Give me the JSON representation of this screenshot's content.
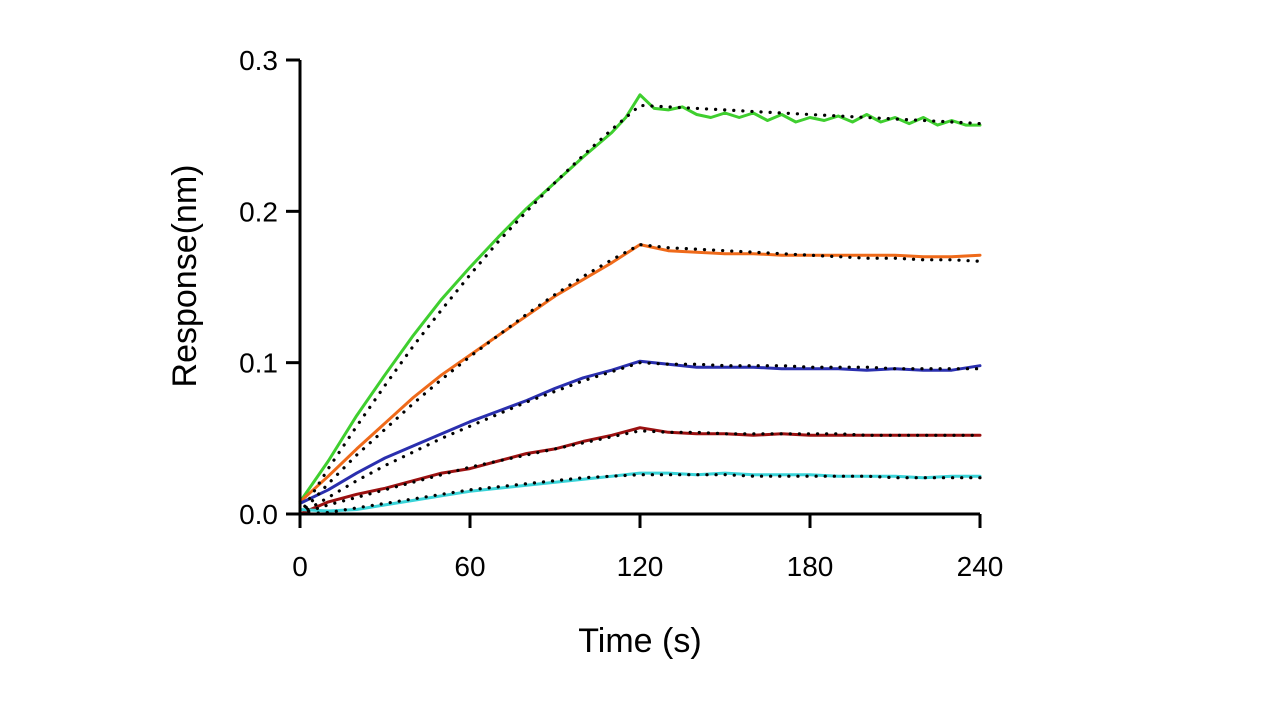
{
  "chart_data": {
    "type": "line",
    "title": "",
    "xlabel": "Time (s)",
    "ylabel": "Response(nm)",
    "xlim": [
      0,
      240
    ],
    "ylim": [
      0,
      0.3
    ],
    "xticks": [
      0,
      60,
      120,
      180,
      240
    ],
    "xtick_labels": [
      "0",
      "60",
      "120",
      "180",
      "240"
    ],
    "yticks": [
      0,
      0.1,
      0.2,
      0.3
    ],
    "ytick_labels": [
      "0.0",
      "0.1",
      "0.2",
      "0.3"
    ],
    "grid": false,
    "legend": "none",
    "series": [
      {
        "color": "#3fcf2f",
        "measured": [
          [
            0,
            0.008
          ],
          [
            10,
            0.035
          ],
          [
            20,
            0.065
          ],
          [
            30,
            0.092
          ],
          [
            40,
            0.118
          ],
          [
            50,
            0.142
          ],
          [
            60,
            0.163
          ],
          [
            70,
            0.183
          ],
          [
            80,
            0.202
          ],
          [
            90,
            0.219
          ],
          [
            100,
            0.236
          ],
          [
            110,
            0.252
          ],
          [
            115,
            0.262
          ],
          [
            120,
            0.277
          ],
          [
            125,
            0.268
          ],
          [
            130,
            0.267
          ],
          [
            135,
            0.269
          ],
          [
            140,
            0.264
          ],
          [
            145,
            0.262
          ],
          [
            150,
            0.265
          ],
          [
            155,
            0.262
          ],
          [
            160,
            0.265
          ],
          [
            165,
            0.26
          ],
          [
            170,
            0.264
          ],
          [
            175,
            0.259
          ],
          [
            180,
            0.262
          ],
          [
            185,
            0.26
          ],
          [
            190,
            0.263
          ],
          [
            195,
            0.259
          ],
          [
            200,
            0.264
          ],
          [
            205,
            0.259
          ],
          [
            210,
            0.262
          ],
          [
            215,
            0.258
          ],
          [
            220,
            0.262
          ],
          [
            225,
            0.257
          ],
          [
            230,
            0.26
          ],
          [
            235,
            0.257
          ],
          [
            240,
            0.257
          ]
        ],
        "fit": [
          [
            0,
            0.0
          ],
          [
            10,
            0.03
          ],
          [
            20,
            0.058
          ],
          [
            30,
            0.085
          ],
          [
            40,
            0.111
          ],
          [
            50,
            0.135
          ],
          [
            60,
            0.158
          ],
          [
            70,
            0.18
          ],
          [
            80,
            0.2
          ],
          [
            90,
            0.219
          ],
          [
            100,
            0.237
          ],
          [
            110,
            0.254
          ],
          [
            120,
            0.27
          ],
          [
            130,
            0.269
          ],
          [
            140,
            0.268
          ],
          [
            150,
            0.267
          ],
          [
            160,
            0.266
          ],
          [
            170,
            0.265
          ],
          [
            180,
            0.264
          ],
          [
            190,
            0.263
          ],
          [
            200,
            0.262
          ],
          [
            210,
            0.261
          ],
          [
            220,
            0.26
          ],
          [
            230,
            0.259
          ],
          [
            240,
            0.258
          ]
        ]
      },
      {
        "color": "#ef6a1a",
        "measured": [
          [
            0,
            0.008
          ],
          [
            10,
            0.025
          ],
          [
            20,
            0.043
          ],
          [
            30,
            0.06
          ],
          [
            40,
            0.077
          ],
          [
            50,
            0.092
          ],
          [
            60,
            0.105
          ],
          [
            70,
            0.118
          ],
          [
            80,
            0.131
          ],
          [
            90,
            0.144
          ],
          [
            100,
            0.155
          ],
          [
            110,
            0.166
          ],
          [
            120,
            0.178
          ],
          [
            130,
            0.174
          ],
          [
            140,
            0.173
          ],
          [
            150,
            0.172
          ],
          [
            160,
            0.172
          ],
          [
            170,
            0.171
          ],
          [
            180,
            0.171
          ],
          [
            190,
            0.171
          ],
          [
            200,
            0.171
          ],
          [
            210,
            0.171
          ],
          [
            220,
            0.17
          ],
          [
            230,
            0.17
          ],
          [
            240,
            0.171
          ]
        ],
        "fit": [
          [
            0,
            0.0
          ],
          [
            10,
            0.02
          ],
          [
            20,
            0.039
          ],
          [
            30,
            0.056
          ],
          [
            40,
            0.073
          ],
          [
            50,
            0.089
          ],
          [
            60,
            0.104
          ],
          [
            70,
            0.118
          ],
          [
            80,
            0.132
          ],
          [
            90,
            0.145
          ],
          [
            100,
            0.157
          ],
          [
            110,
            0.168
          ],
          [
            120,
            0.178
          ],
          [
            130,
            0.176
          ],
          [
            140,
            0.175
          ],
          [
            150,
            0.174
          ],
          [
            160,
            0.173
          ],
          [
            170,
            0.172
          ],
          [
            180,
            0.171
          ],
          [
            190,
            0.17
          ],
          [
            200,
            0.169
          ],
          [
            210,
            0.169
          ],
          [
            220,
            0.168
          ],
          [
            230,
            0.168
          ],
          [
            240,
            0.167
          ]
        ]
      },
      {
        "color": "#2a2fae",
        "measured": [
          [
            0,
            0.007
          ],
          [
            10,
            0.016
          ],
          [
            20,
            0.027
          ],
          [
            30,
            0.037
          ],
          [
            40,
            0.045
          ],
          [
            50,
            0.053
          ],
          [
            60,
            0.061
          ],
          [
            70,
            0.068
          ],
          [
            80,
            0.075
          ],
          [
            90,
            0.083
          ],
          [
            100,
            0.09
          ],
          [
            110,
            0.095
          ],
          [
            120,
            0.101
          ],
          [
            130,
            0.099
          ],
          [
            140,
            0.097
          ],
          [
            150,
            0.097
          ],
          [
            160,
            0.097
          ],
          [
            170,
            0.096
          ],
          [
            180,
            0.096
          ],
          [
            190,
            0.096
          ],
          [
            200,
            0.095
          ],
          [
            210,
            0.096
          ],
          [
            220,
            0.095
          ],
          [
            230,
            0.095
          ],
          [
            240,
            0.098
          ]
        ],
        "fit": [
          [
            0,
            0.0
          ],
          [
            10,
            0.011
          ],
          [
            20,
            0.022
          ],
          [
            30,
            0.032
          ],
          [
            40,
            0.041
          ],
          [
            50,
            0.05
          ],
          [
            60,
            0.058
          ],
          [
            70,
            0.066
          ],
          [
            80,
            0.074
          ],
          [
            90,
            0.081
          ],
          [
            100,
            0.088
          ],
          [
            110,
            0.094
          ],
          [
            120,
            0.1
          ],
          [
            130,
            0.099
          ],
          [
            140,
            0.099
          ],
          [
            150,
            0.098
          ],
          [
            160,
            0.098
          ],
          [
            170,
            0.098
          ],
          [
            180,
            0.097
          ],
          [
            190,
            0.097
          ],
          [
            200,
            0.097
          ],
          [
            210,
            0.096
          ],
          [
            220,
            0.096
          ],
          [
            230,
            0.096
          ],
          [
            240,
            0.096
          ]
        ]
      },
      {
        "color": "#9b1111",
        "measured": [
          [
            0,
            0.0
          ],
          [
            10,
            0.008
          ],
          [
            20,
            0.013
          ],
          [
            30,
            0.017
          ],
          [
            40,
            0.022
          ],
          [
            50,
            0.027
          ],
          [
            60,
            0.03
          ],
          [
            70,
            0.035
          ],
          [
            80,
            0.04
          ],
          [
            90,
            0.043
          ],
          [
            100,
            0.048
          ],
          [
            110,
            0.052
          ],
          [
            120,
            0.057
          ],
          [
            130,
            0.054
          ],
          [
            140,
            0.053
          ],
          [
            150,
            0.053
          ],
          [
            160,
            0.052
          ],
          [
            170,
            0.053
          ],
          [
            180,
            0.052
          ],
          [
            190,
            0.052
          ],
          [
            200,
            0.052
          ],
          [
            210,
            0.052
          ],
          [
            220,
            0.052
          ],
          [
            230,
            0.052
          ],
          [
            240,
            0.052
          ]
        ],
        "fit": [
          [
            0,
            0.0
          ],
          [
            10,
            0.006
          ],
          [
            20,
            0.011
          ],
          [
            30,
            0.016
          ],
          [
            40,
            0.021
          ],
          [
            50,
            0.026
          ],
          [
            60,
            0.031
          ],
          [
            70,
            0.035
          ],
          [
            80,
            0.039
          ],
          [
            90,
            0.043
          ],
          [
            100,
            0.047
          ],
          [
            110,
            0.051
          ],
          [
            120,
            0.055
          ],
          [
            130,
            0.054
          ],
          [
            140,
            0.054
          ],
          [
            150,
            0.053
          ],
          [
            160,
            0.053
          ],
          [
            170,
            0.053
          ],
          [
            180,
            0.053
          ],
          [
            190,
            0.053
          ],
          [
            200,
            0.052
          ],
          [
            210,
            0.052
          ],
          [
            220,
            0.052
          ],
          [
            230,
            0.052
          ],
          [
            240,
            0.052
          ]
        ]
      },
      {
        "color": "#3ad3d8",
        "measured": [
          [
            0,
            0.003
          ],
          [
            10,
            0.002
          ],
          [
            20,
            0.003
          ],
          [
            30,
            0.006
          ],
          [
            40,
            0.009
          ],
          [
            50,
            0.012
          ],
          [
            60,
            0.015
          ],
          [
            70,
            0.017
          ],
          [
            80,
            0.019
          ],
          [
            90,
            0.021
          ],
          [
            100,
            0.023
          ],
          [
            110,
            0.025
          ],
          [
            120,
            0.027
          ],
          [
            130,
            0.027
          ],
          [
            140,
            0.026
          ],
          [
            150,
            0.027
          ],
          [
            160,
            0.026
          ],
          [
            170,
            0.026
          ],
          [
            180,
            0.026
          ],
          [
            190,
            0.025
          ],
          [
            200,
            0.025
          ],
          [
            210,
            0.025
          ],
          [
            220,
            0.024
          ],
          [
            230,
            0.025
          ],
          [
            240,
            0.025
          ]
        ],
        "fit": [
          [
            0,
            0.0
          ],
          [
            10,
            0.001
          ],
          [
            20,
            0.004
          ],
          [
            30,
            0.007
          ],
          [
            40,
            0.01
          ],
          [
            50,
            0.013
          ],
          [
            60,
            0.016
          ],
          [
            70,
            0.018
          ],
          [
            80,
            0.02
          ],
          [
            90,
            0.022
          ],
          [
            100,
            0.024
          ],
          [
            110,
            0.025
          ],
          [
            120,
            0.026
          ],
          [
            130,
            0.026
          ],
          [
            140,
            0.026
          ],
          [
            150,
            0.026
          ],
          [
            160,
            0.025
          ],
          [
            170,
            0.025
          ],
          [
            180,
            0.025
          ],
          [
            190,
            0.025
          ],
          [
            200,
            0.025
          ],
          [
            210,
            0.024
          ],
          [
            220,
            0.024
          ],
          [
            230,
            0.024
          ],
          [
            240,
            0.024
          ]
        ]
      }
    ],
    "fit_color": "#000000"
  }
}
